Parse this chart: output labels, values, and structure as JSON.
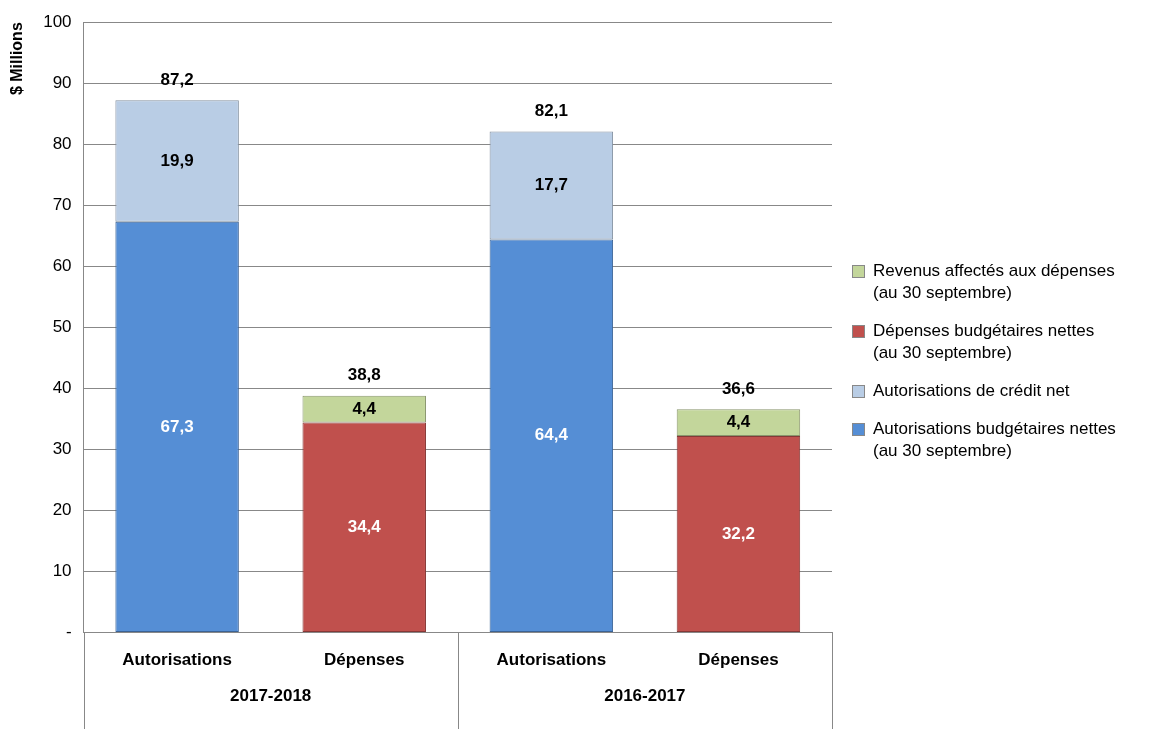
{
  "chart_data": {
    "type": "bar",
    "stacked": true,
    "ylabel": "$ Millions",
    "categories": [
      "Autorisations",
      "Dépenses",
      "Autorisations",
      "Dépenses"
    ],
    "annotations": [
      "2017-2018",
      "2016-2017"
    ],
    "series": [
      {
        "name": "Autorisations budgétaires nettes (au 30 septembre)",
        "color": "#558ed5",
        "values": [
          67.3,
          null,
          64.4,
          null
        ],
        "value_labels": [
          "67,3",
          null,
          "64,4",
          null
        ]
      },
      {
        "name": "Autorisations de crédit net",
        "color": "#b9cde5",
        "values": [
          19.9,
          null,
          17.7,
          null
        ],
        "value_labels": [
          "19,9",
          null,
          "17,7",
          null
        ]
      },
      {
        "name": "Dépenses budgétaires nettes (au 30 septembre)",
        "color": "#c0504d",
        "values": [
          null,
          34.4,
          null,
          32.2
        ],
        "value_labels": [
          null,
          "34,4",
          null,
          "32,2"
        ]
      },
      {
        "name": "Revenus affectés aux dépenses (au 30 septembre)",
        "color": "#c3d69b",
        "values": [
          null,
          4.4,
          null,
          4.4
        ],
        "value_labels": [
          null,
          "4,4",
          null,
          "4,4"
        ]
      }
    ],
    "totals": [
      "87,2",
      "38,8",
      "82,1",
      "36,6"
    ],
    "ylim": [
      0,
      100
    ],
    "yticks": [
      {
        "value": 0,
        "label": "-"
      },
      10,
      20,
      30,
      40,
      50,
      60,
      70,
      80,
      90,
      100
    ],
    "grid": "y",
    "legend": "right"
  }
}
